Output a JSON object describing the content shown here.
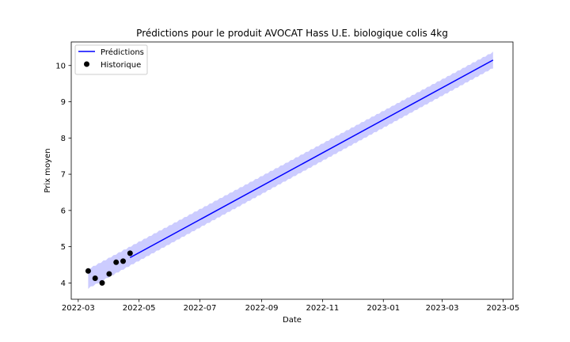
{
  "chart_data": {
    "type": "line",
    "title": "Prédictions pour le produit AVOCAT Hass U.E. biologique colis 4kg",
    "xlabel": "Date",
    "ylabel": "Prix moyen",
    "xlim": [
      "2022-02-22",
      "2023-05-11"
    ],
    "ylim": [
      3.55,
      10.65
    ],
    "x_ticks": [
      "2022-03",
      "2022-05",
      "2022-07",
      "2022-09",
      "2022-11",
      "2023-01",
      "2023-03",
      "2023-05"
    ],
    "x_tick_dates": [
      "2022-03-01",
      "2022-05-01",
      "2022-07-01",
      "2022-09-01",
      "2022-11-01",
      "2023-01-01",
      "2023-03-01",
      "2023-05-01"
    ],
    "y_ticks": [
      4,
      5,
      6,
      7,
      8,
      9,
      10
    ],
    "legend": {
      "position": "upper-left",
      "entries": [
        "Prédictions",
        "Historique"
      ]
    },
    "series": [
      {
        "name": "Prédictions",
        "kind": "line",
        "color": "#0000ff",
        "x": [
          "2022-04-22",
          "2023-04-21"
        ],
        "y": [
          4.7,
          10.15
        ]
      },
      {
        "name": "Historique",
        "kind": "scatter",
        "color": "#000000",
        "x": [
          "2022-03-11",
          "2022-03-18",
          "2022-03-25",
          "2022-04-01",
          "2022-04-08",
          "2022-04-15",
          "2022-04-22"
        ],
        "y": [
          4.33,
          4.13,
          4.0,
          4.25,
          4.57,
          4.6,
          4.82
        ]
      }
    ],
    "confidence_band": {
      "color": "#0000ff",
      "x": [
        "2022-03-11",
        "2023-04-21"
      ],
      "lower": [
        3.85,
        9.93
      ],
      "upper": [
        4.38,
        10.37
      ]
    }
  }
}
